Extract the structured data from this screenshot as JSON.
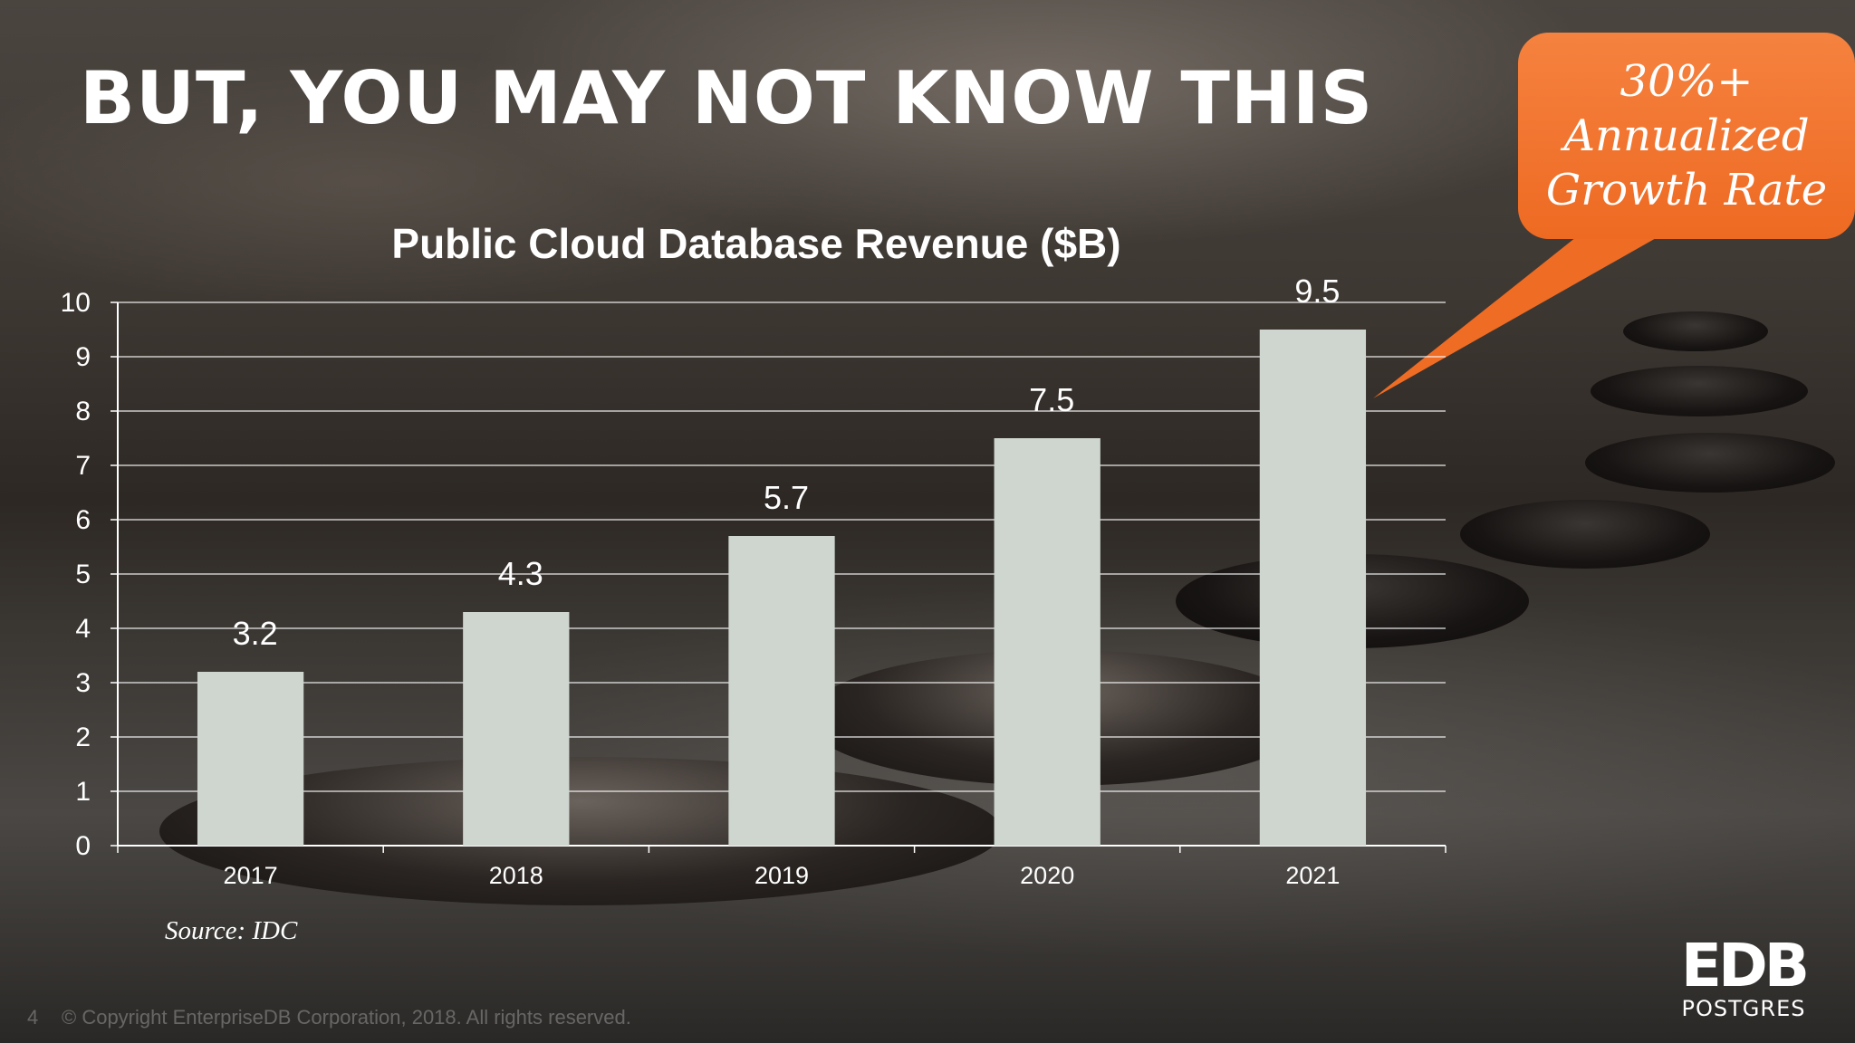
{
  "slide": {
    "title": "BUT, YOU MAY NOT KNOW THIS",
    "page_number": "4",
    "copyright": "© Copyright EnterpriseDB Corporation, 2018. All rights reserved."
  },
  "callout": {
    "lines": [
      "30%+",
      "Annualized",
      "Growth Rate"
    ],
    "color": "#ef6c24"
  },
  "source": "Source: IDC",
  "logo": {
    "mark": "EDB",
    "sub": "POSTGRES"
  },
  "chart_data": {
    "type": "bar",
    "title": "Public Cloud Database Revenue ($B)",
    "xlabel": "",
    "ylabel": "",
    "categories": [
      "2017",
      "2018",
      "2019",
      "2020",
      "2021"
    ],
    "values": [
      3.2,
      4.3,
      5.7,
      7.5,
      9.5
    ],
    "data_labels": [
      "3.2",
      "4.3",
      "5.7",
      "7.5",
      "9.5"
    ],
    "ylim": [
      0,
      10
    ],
    "yticks": [
      "0",
      "1",
      "2",
      "3",
      "4",
      "5",
      "6",
      "7",
      "8",
      "9",
      "10"
    ],
    "grid": true,
    "legend": "none",
    "bar_color": "#cfd6cf"
  }
}
